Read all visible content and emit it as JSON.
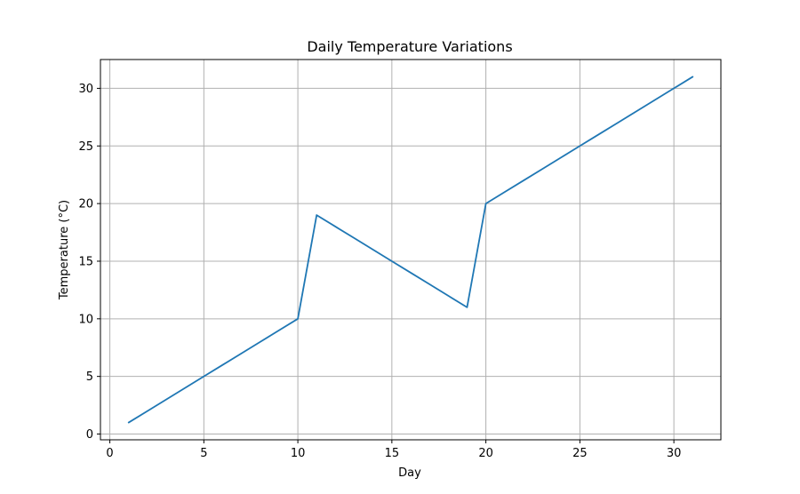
{
  "chart_data": {
    "type": "line",
    "title": "Daily Temperature Variations",
    "xlabel": "Day",
    "ylabel": "Temperature (°C)",
    "xlim": [
      -0.5,
      32.5
    ],
    "ylim": [
      -0.5,
      32.5
    ],
    "xticks": [
      0,
      5,
      10,
      15,
      20,
      25,
      30
    ],
    "yticks": [
      0,
      5,
      10,
      15,
      20,
      25,
      30
    ],
    "grid": true,
    "line_color": "#1f77b4",
    "series": [
      {
        "x": [
          1,
          2,
          3,
          4,
          5,
          6,
          7,
          8,
          9,
          10,
          11,
          12,
          13,
          14,
          15,
          16,
          17,
          18,
          19,
          20,
          21,
          22,
          23,
          24,
          25,
          26,
          27,
          28,
          29,
          30,
          31
        ],
        "values": [
          1,
          2,
          3,
          4,
          5,
          6,
          7,
          8,
          9,
          10,
          19,
          18,
          17,
          16,
          15,
          14,
          13,
          12,
          11,
          20,
          21,
          22,
          23,
          24,
          25,
          26,
          27,
          28,
          29,
          30,
          31
        ]
      }
    ]
  }
}
